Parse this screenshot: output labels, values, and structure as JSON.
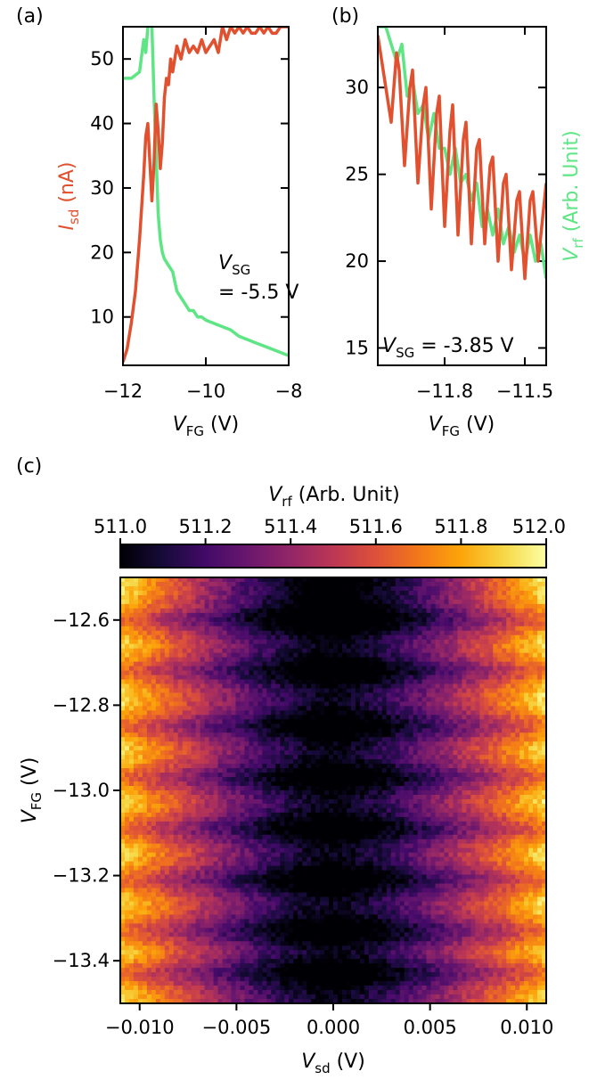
{
  "panel_labels": {
    "a": "(a)",
    "b": "(b)",
    "c": "(c)"
  },
  "colors": {
    "isd": "#e2512f",
    "vrf": "#5ee584"
  },
  "chart_data": [
    {
      "id": "a",
      "type": "line",
      "xlabel_main": "V",
      "xlabel_sub": "FG",
      "xlabel_unit": " (V)",
      "ylabel_main": "I",
      "ylabel_sub": "sd",
      "ylabel_unit": " (nA)",
      "xlim": [
        -12,
        -8
      ],
      "ylim": [
        2.5,
        55
      ],
      "xticks": [
        -12,
        -10,
        -8
      ],
      "xticklabels": [
        "−12",
        "−10",
        "−8"
      ],
      "yticks": [
        10,
        20,
        30,
        40,
        50
      ],
      "yticklabels": [
        "10",
        "20",
        "30",
        "40",
        "50"
      ],
      "annotation": {
        "line1_main": "V",
        "line1_sub": "SG",
        "line2": "= -5.5 V"
      },
      "series": [
        {
          "key": "isd",
          "x": [
            -12.0,
            -11.9,
            -11.8,
            -11.7,
            -11.6,
            -11.5,
            -11.45,
            -11.4,
            -11.35,
            -11.3,
            -11.25,
            -11.2,
            -11.15,
            -11.1,
            -11.05,
            -11.0,
            -10.95,
            -10.9,
            -10.85,
            -10.8,
            -10.7,
            -10.6,
            -10.5,
            -10.4,
            -10.3,
            -10.2,
            -10.1,
            -10.0,
            -9.9,
            -9.8,
            -9.7,
            -9.6,
            -9.5,
            -9.4,
            -9.3,
            -9.2,
            -9.1,
            -9.0,
            -8.9,
            -8.8,
            -8.7,
            -8.6,
            -8.5,
            -8.4,
            -8.3,
            -8.2,
            -8.1,
            -8.0
          ],
          "y": [
            3,
            5,
            9,
            14,
            22,
            32,
            38,
            40,
            34,
            28,
            34,
            43,
            39,
            33,
            37,
            44,
            47,
            46,
            50,
            48,
            52,
            50,
            53,
            51,
            52,
            51,
            53,
            51,
            52,
            53,
            51,
            55,
            53,
            55,
            54,
            55,
            54,
            55,
            54,
            54,
            55,
            54,
            55,
            54,
            54,
            55,
            55,
            55
          ]
        },
        {
          "key": "vrf",
          "x": [
            -12.0,
            -11.8,
            -11.6,
            -11.5,
            -11.45,
            -11.4,
            -11.35,
            -11.3,
            -11.25,
            -11.2,
            -11.15,
            -11.1,
            -11.05,
            -11.0,
            -10.9,
            -10.8,
            -10.7,
            -10.6,
            -10.5,
            -10.4,
            -10.3,
            -10.2,
            -10.1,
            -10.0,
            -9.8,
            -9.6,
            -9.4,
            -9.2,
            -9.0,
            -8.8,
            -8.6,
            -8.4,
            -8.2,
            -8.0
          ],
          "y": [
            47,
            47,
            48,
            53,
            51,
            55,
            56,
            55,
            44,
            35,
            26,
            22,
            20,
            19,
            18,
            17,
            14,
            13,
            12,
            11,
            11,
            10,
            10,
            9.5,
            9,
            8.5,
            8,
            7,
            6.5,
            6,
            5.5,
            5,
            4.5,
            4
          ]
        }
      ]
    },
    {
      "id": "b",
      "type": "line",
      "xlabel_main": "V",
      "xlabel_sub": "FG",
      "xlabel_unit": " (V)",
      "ylabel_main": "V",
      "ylabel_sub": "rf",
      "ylabel_unit": " (Arb. Unit)",
      "xlim": [
        -12.05,
        -11.42
      ],
      "ylim": [
        14,
        33.5
      ],
      "xticks": [
        -11.8,
        -11.5
      ],
      "xticklabels": [
        "−11.8",
        "−11.5"
      ],
      "yticks": [
        15,
        20,
        25,
        30
      ],
      "yticklabels": [
        "15",
        "20",
        "25",
        "30"
      ],
      "annotation": {
        "line1_main": "V",
        "line1_sub": "SG",
        "line2": " = -3.85 V"
      },
      "series": [
        {
          "key": "isd",
          "x": [
            -12.05,
            -12.03,
            -12.0,
            -11.98,
            -11.97,
            -11.95,
            -11.93,
            -11.92,
            -11.9,
            -11.88,
            -11.87,
            -11.85,
            -11.83,
            -11.82,
            -11.8,
            -11.78,
            -11.77,
            -11.75,
            -11.73,
            -11.72,
            -11.7,
            -11.68,
            -11.67,
            -11.65,
            -11.63,
            -11.62,
            -11.6,
            -11.58,
            -11.57,
            -11.55,
            -11.53,
            -11.52,
            -11.5,
            -11.48,
            -11.47,
            -11.45,
            -11.43,
            -11.42
          ],
          "y": [
            33,
            31,
            28,
            32,
            31,
            25.5,
            30,
            31,
            24.5,
            29,
            30,
            23,
            28.5,
            29.5,
            22,
            27.5,
            29,
            21.5,
            27,
            28,
            21,
            26.5,
            27,
            21,
            25.5,
            26,
            20,
            24.5,
            25,
            19.5,
            23.5,
            24,
            19,
            23.5,
            24,
            20,
            23,
            24.5
          ]
        },
        {
          "key": "vrf",
          "x": [
            -12.05,
            -12.02,
            -12.0,
            -11.98,
            -11.96,
            -11.94,
            -11.92,
            -11.9,
            -11.88,
            -11.86,
            -11.84,
            -11.82,
            -11.8,
            -11.78,
            -11.76,
            -11.74,
            -11.72,
            -11.7,
            -11.68,
            -11.66,
            -11.64,
            -11.62,
            -11.6,
            -11.58,
            -11.56,
            -11.54,
            -11.52,
            -11.5,
            -11.48,
            -11.46,
            -11.44,
            -11.42
          ],
          "y": [
            33.5,
            33.5,
            32.5,
            31.5,
            32.5,
            29.5,
            30.5,
            28.5,
            29,
            27,
            28.5,
            26.5,
            26.5,
            25,
            26.5,
            24.5,
            25,
            23.5,
            24.5,
            22,
            23,
            21.5,
            23,
            21,
            22,
            20.5,
            21.5,
            20,
            21.5,
            20,
            21,
            19
          ]
        }
      ]
    },
    {
      "id": "c",
      "type": "heatmap",
      "colormap": "inferno",
      "colorbar_label_main": "V",
      "colorbar_label_sub": "rf",
      "colorbar_label_unit": " (Arb. Unit)",
      "colorbar_range": [
        511.0,
        512.0
      ],
      "colorbar_ticks": [
        511.0,
        511.2,
        511.4,
        511.6,
        511.8,
        512.0
      ],
      "colorbar_ticklabels": [
        "511.0",
        "511.2",
        "511.4",
        "511.6",
        "511.8",
        "512.0"
      ],
      "xlabel_main": "V",
      "xlabel_sub": "sd",
      "xlabel_unit": " (V)",
      "ylabel_main": "V",
      "ylabel_sub": "FG",
      "ylabel_unit": " (V)",
      "xlim": [
        -0.011,
        0.011
      ],
      "ylim": [
        -13.5,
        -12.5
      ],
      "xticks": [
        -0.01,
        -0.005,
        0.0,
        0.005,
        0.01
      ],
      "xticklabels": [
        "−0.010",
        "−0.005",
        "0.000",
        "0.005",
        "0.010"
      ],
      "yticks": [
        -12.6,
        -12.8,
        -13.0,
        -13.2,
        -13.4
      ],
      "yticklabels": [
        "−12.6",
        "−12.8",
        "−13.0",
        "−13.2",
        "−13.4"
      ],
      "grid": {
        "nx": 96,
        "ny": 96
      },
      "dark_band_centers_vfg": [
        -12.6,
        -12.72,
        -12.85,
        -12.97,
        -13.09,
        -13.21,
        -13.33,
        -13.43
      ],
      "value_at_center": 511.0,
      "value_at_edges": 511.85
    }
  ]
}
